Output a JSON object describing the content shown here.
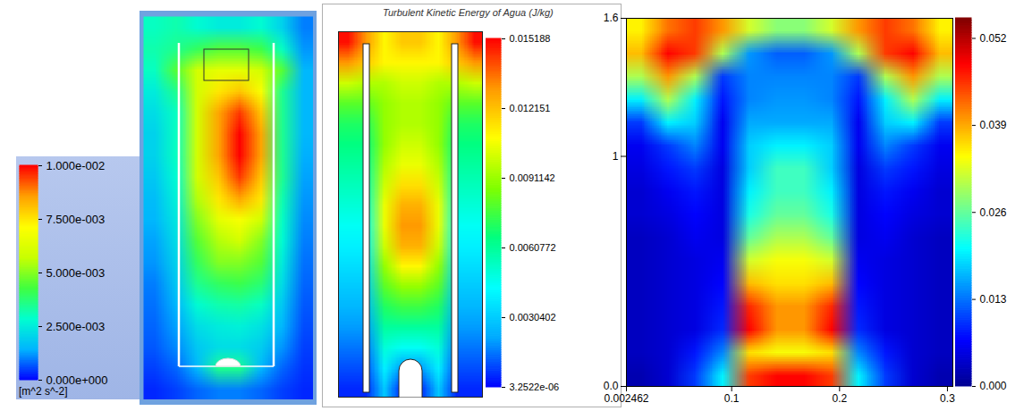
{
  "chart_data": [
    {
      "type": "heatmap",
      "tick_labels": false,
      "cells": [
        [
          0.003,
          0.0032,
          0.0028,
          0.0025,
          0.0025,
          0.0028,
          0.002,
          0.001
        ],
        [
          0.0032,
          0.0035,
          0.004,
          0.0045,
          0.0045,
          0.0042,
          0.003,
          0.0012
        ],
        [
          0.003,
          0.0045,
          0.006,
          0.0065,
          0.0065,
          0.006,
          0.0045,
          0.0015
        ],
        [
          0.0025,
          0.0035,
          0.006,
          0.0075,
          0.008,
          0.007,
          0.0035,
          0.0015
        ],
        [
          0.0022,
          0.003,
          0.006,
          0.0085,
          0.0095,
          0.008,
          0.0035,
          0.0015
        ],
        [
          0.002,
          0.003,
          0.006,
          0.0085,
          0.01,
          0.0085,
          0.0035,
          0.0015
        ],
        [
          0.002,
          0.003,
          0.006,
          0.0085,
          0.01,
          0.0085,
          0.0035,
          0.0014
        ],
        [
          0.0018,
          0.0028,
          0.006,
          0.008,
          0.0095,
          0.008,
          0.0035,
          0.0013
        ],
        [
          0.0016,
          0.0026,
          0.0055,
          0.0075,
          0.0085,
          0.0075,
          0.0032,
          0.0012
        ],
        [
          0.0015,
          0.0024,
          0.005,
          0.0065,
          0.007,
          0.006,
          0.003,
          0.0011
        ],
        [
          0.0013,
          0.0022,
          0.0045,
          0.0055,
          0.006,
          0.005,
          0.0028,
          0.001
        ],
        [
          0.0012,
          0.002,
          0.004,
          0.005,
          0.005,
          0.0045,
          0.0025,
          0.0009
        ],
        [
          0.001,
          0.0018,
          0.0035,
          0.004,
          0.0042,
          0.0038,
          0.0022,
          0.0008
        ],
        [
          0.0009,
          0.0015,
          0.0028,
          0.0032,
          0.0033,
          0.003,
          0.0018,
          0.0007
        ],
        [
          0.0008,
          0.0013,
          0.0022,
          0.0025,
          0.0026,
          0.0023,
          0.0015,
          0.0006
        ],
        [
          0.0007,
          0.0011,
          0.0018,
          0.0022,
          0.0022,
          0.0019,
          0.0012,
          0.0005
        ],
        [
          0.0005,
          0.0008,
          0.0015,
          0.0035,
          0.0035,
          0.0015,
          0.0008,
          0.0004
        ],
        [
          0.0003,
          0.0005,
          0.0008,
          0.001,
          0.001,
          0.0008,
          0.0005,
          0.0003
        ]
      ],
      "colorbar_lim": [
        0,
        0.01
      ],
      "colorbar_ticks": [
        {
          "value": 0,
          "label": "0.000e+000"
        },
        {
          "value": 0.0025,
          "label": "2.500e-003"
        },
        {
          "value": 0.005,
          "label": "5.000e-003"
        },
        {
          "value": 0.0075,
          "label": "7.500e-003"
        },
        {
          "value": 0.01,
          "label": "1.000e-002"
        }
      ],
      "colorbar_label": "[m^2 s^-2]"
    },
    {
      "type": "heatmap",
      "title": "Turbulent Kinetic Energy of Agua (J/kg)",
      "tick_labels": false,
      "cells": [
        [
          0.015,
          0.013,
          0.011,
          0.012,
          0.012,
          0.011,
          0.013,
          0.015
        ],
        [
          0.013,
          0.012,
          0.011,
          0.011,
          0.011,
          0.011,
          0.012,
          0.013
        ],
        [
          0.01,
          0.0095,
          0.0095,
          0.01,
          0.01,
          0.0095,
          0.0095,
          0.01
        ],
        [
          0.008,
          0.008,
          0.009,
          0.0095,
          0.0095,
          0.009,
          0.008,
          0.008
        ],
        [
          0.007,
          0.007,
          0.009,
          0.0095,
          0.0095,
          0.009,
          0.007,
          0.007
        ],
        [
          0.0065,
          0.0065,
          0.009,
          0.01,
          0.01,
          0.009,
          0.0065,
          0.0065
        ],
        [
          0.006,
          0.006,
          0.0095,
          0.0105,
          0.0105,
          0.0095,
          0.006,
          0.006
        ],
        [
          0.0055,
          0.0055,
          0.01,
          0.0115,
          0.0115,
          0.01,
          0.0055,
          0.0055
        ],
        [
          0.005,
          0.005,
          0.0105,
          0.0125,
          0.0125,
          0.0105,
          0.005,
          0.005
        ],
        [
          0.0045,
          0.0045,
          0.0105,
          0.013,
          0.013,
          0.0105,
          0.0045,
          0.0045
        ],
        [
          0.004,
          0.004,
          0.01,
          0.0125,
          0.0125,
          0.01,
          0.004,
          0.004
        ],
        [
          0.0035,
          0.0035,
          0.009,
          0.011,
          0.011,
          0.009,
          0.0035,
          0.0035
        ],
        [
          0.003,
          0.003,
          0.008,
          0.009,
          0.009,
          0.008,
          0.003,
          0.003
        ],
        [
          0.0025,
          0.0025,
          0.007,
          0.0075,
          0.0075,
          0.007,
          0.0025,
          0.0025
        ],
        [
          0.002,
          0.002,
          0.006,
          0.006,
          0.006,
          0.006,
          0.002,
          0.002
        ],
        [
          0.0015,
          0.0015,
          0.005,
          0.0045,
          0.0045,
          0.005,
          0.0015,
          0.0015
        ],
        [
          0.001,
          0.001,
          0.004,
          0.002,
          0.002,
          0.004,
          0.001,
          0.001
        ],
        [
          0.0005,
          0.0005,
          0.003,
          0.0005,
          0.0005,
          0.003,
          0.0005,
          0.0005
        ]
      ],
      "colorbar_lim": [
        3.2522e-06,
        0.015188
      ],
      "colorbar_ticks": [
        {
          "value": 3.2522e-06,
          "label": "3.2522e-06"
        },
        0.0030402,
        0.0060772,
        0.0091142,
        0.012151,
        0.015188
      ]
    },
    {
      "type": "heatmap",
      "xlim": [
        0.002462,
        0.305
      ],
      "xticks": [
        0.002462,
        0.1,
        0.2,
        0.3
      ],
      "ylim": [
        0,
        1.6
      ],
      "yticks": [
        {
          "value": 0,
          "label": "0.0"
        },
        1,
        1.6
      ],
      "cells": [
        [
          0.035,
          0.042,
          0.045,
          0.04,
          0.032,
          0.028,
          0.028,
          0.032,
          0.04,
          0.045,
          0.042,
          0.035
        ],
        [
          0.038,
          0.048,
          0.045,
          0.03,
          0.015,
          0.012,
          0.012,
          0.015,
          0.03,
          0.045,
          0.048,
          0.038
        ],
        [
          0.03,
          0.04,
          0.03,
          0.01,
          0.014,
          0.014,
          0.014,
          0.014,
          0.01,
          0.03,
          0.04,
          0.03
        ],
        [
          0.02,
          0.03,
          0.02,
          0.008,
          0.014,
          0.015,
          0.015,
          0.014,
          0.008,
          0.02,
          0.03,
          0.02
        ],
        [
          0.01,
          0.02,
          0.018,
          0.006,
          0.016,
          0.016,
          0.016,
          0.016,
          0.006,
          0.018,
          0.02,
          0.01
        ],
        [
          0.006,
          0.01,
          0.014,
          0.006,
          0.018,
          0.02,
          0.02,
          0.018,
          0.006,
          0.014,
          0.01,
          0.006
        ],
        [
          0.005,
          0.008,
          0.01,
          0.005,
          0.018,
          0.024,
          0.024,
          0.018,
          0.005,
          0.01,
          0.008,
          0.005
        ],
        [
          0.004,
          0.006,
          0.008,
          0.005,
          0.02,
          0.024,
          0.024,
          0.02,
          0.005,
          0.008,
          0.006,
          0.004
        ],
        [
          0.004,
          0.005,
          0.007,
          0.005,
          0.022,
          0.026,
          0.026,
          0.022,
          0.005,
          0.007,
          0.005,
          0.004
        ],
        [
          0.003,
          0.004,
          0.006,
          0.005,
          0.026,
          0.03,
          0.03,
          0.026,
          0.005,
          0.006,
          0.004,
          0.003
        ],
        [
          0.003,
          0.004,
          0.005,
          0.006,
          0.032,
          0.034,
          0.034,
          0.032,
          0.006,
          0.005,
          0.004,
          0.003
        ],
        [
          0.003,
          0.004,
          0.005,
          0.007,
          0.038,
          0.036,
          0.036,
          0.038,
          0.007,
          0.005,
          0.004,
          0.003
        ],
        [
          0.003,
          0.004,
          0.005,
          0.008,
          0.046,
          0.04,
          0.04,
          0.046,
          0.008,
          0.005,
          0.004,
          0.003
        ],
        [
          0.003,
          0.004,
          0.005,
          0.009,
          0.048,
          0.04,
          0.04,
          0.048,
          0.009,
          0.005,
          0.004,
          0.003
        ],
        [
          0.003,
          0.004,
          0.008,
          0.014,
          0.036,
          0.034,
          0.034,
          0.036,
          0.014,
          0.008,
          0.004,
          0.003
        ],
        [
          0.002,
          0.004,
          0.01,
          0.02,
          0.045,
          0.048,
          0.048,
          0.045,
          0.02,
          0.01,
          0.004,
          0.002
        ]
      ],
      "colorbar_lim": [
        0,
        0.055
      ],
      "colorbar_ticks": [
        {
          "value": 0,
          "label": "0.000"
        },
        0.013,
        0.026,
        0.039,
        0.052
      ]
    }
  ]
}
